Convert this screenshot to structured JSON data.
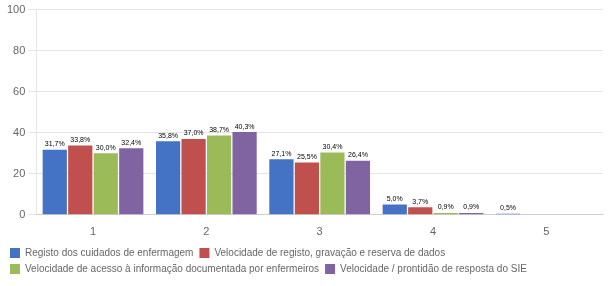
{
  "chart_data": {
    "type": "bar",
    "categories": [
      "1",
      "2",
      "3",
      "4",
      "5"
    ],
    "series": [
      {
        "name": "Registo dos cuidados de enfermagem",
        "color": "#4472C4",
        "values": [
          31.7,
          35.8,
          27.1,
          5.0,
          0.5
        ],
        "value_labels": [
          "31,7%",
          "35,8%",
          "27,1%",
          "5,0%",
          "0,5%"
        ]
      },
      {
        "name": "Velocidade de registo, gravação e reserva de dados",
        "color": "#C0504D",
        "values": [
          33.8,
          37.0,
          25.5,
          3.7,
          0.0
        ],
        "value_labels": [
          "33,8%",
          "37,0%",
          "25,5%",
          "3,7%",
          null
        ]
      },
      {
        "name": "Velocidade de acesso à informação documentada por enfermeiros",
        "color": "#9BBB59",
        "values": [
          30.0,
          38.7,
          30.4,
          0.9,
          0.0
        ],
        "value_labels": [
          "30,0%",
          "38,7%",
          "30,4%",
          "0,9%",
          null
        ]
      },
      {
        "name": "Velocidade / prontidão de resposta do SIE",
        "color": "#8064A2",
        "values": [
          32.4,
          40.3,
          26.4,
          0.9,
          0.0
        ],
        "value_labels": [
          "32,4%",
          "40,3%",
          "26,4%",
          "0,9%",
          null
        ]
      }
    ],
    "ylim": [
      0,
      100
    ],
    "yticks": [
      0,
      20,
      40,
      60,
      80,
      100
    ],
    "grid": true,
    "legend": "bottom",
    "data_labels": true
  }
}
